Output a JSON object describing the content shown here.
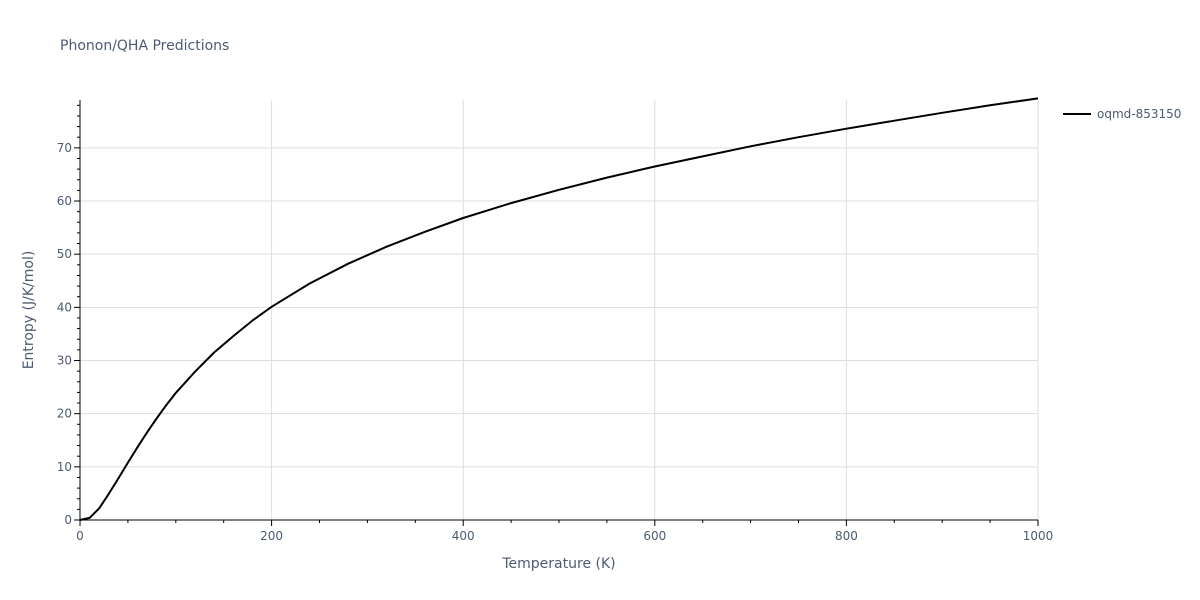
{
  "chart_data": {
    "type": "line",
    "title": "Phonon/QHA Predictions",
    "xlabel": "Temperature (K)",
    "ylabel": "Entropy (J/K/mol)",
    "xlim": [
      0,
      1000
    ],
    "ylim": [
      0,
      79
    ],
    "x_ticks": [
      0,
      200,
      400,
      600,
      800,
      1000
    ],
    "y_ticks": [
      0,
      10,
      20,
      30,
      40,
      50,
      60,
      70
    ],
    "grid": true,
    "legend_position": "top-right",
    "series": [
      {
        "name": "oqmd-853150",
        "color": "#000000",
        "x": [
          0,
          10,
          20,
          30,
          40,
          50,
          60,
          70,
          80,
          90,
          100,
          120,
          140,
          160,
          180,
          200,
          240,
          280,
          320,
          360,
          400,
          450,
          500,
          550,
          600,
          650,
          700,
          750,
          800,
          850,
          900,
          950,
          1000
        ],
        "y": [
          0,
          0.4,
          2.2,
          4.9,
          7.8,
          10.8,
          13.7,
          16.5,
          19.1,
          21.6,
          23.9,
          27.9,
          31.5,
          34.6,
          37.5,
          40.1,
          44.5,
          48.2,
          51.4,
          54.2,
          56.8,
          59.6,
          62.1,
          64.4,
          66.5,
          68.4,
          70.3,
          72.0,
          73.6,
          75.1,
          76.6,
          78.0,
          79.3
        ]
      }
    ]
  }
}
